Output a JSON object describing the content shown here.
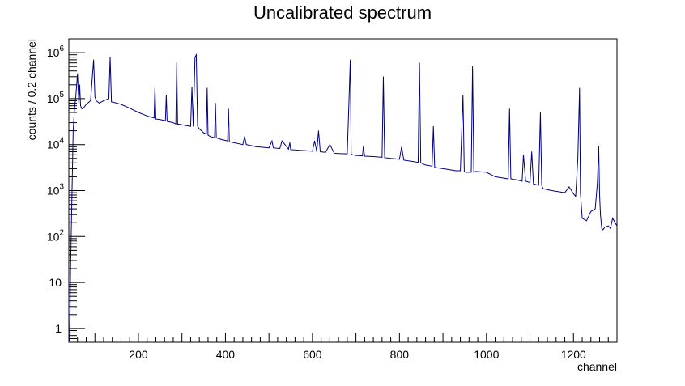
{
  "chart_data": {
    "type": "line",
    "title": "Uncalibrated spectrum",
    "xlabel": "channel",
    "ylabel": "counts / 0.2 channel",
    "xlim": [
      40,
      1300
    ],
    "ylim": [
      0.5,
      2000000
    ],
    "yscale": "log",
    "grid": false,
    "legend": "none",
    "line_color": "#000080",
    "x_ticks": [
      {
        "value": 200,
        "label": "200"
      },
      {
        "value": 400,
        "label": "400"
      },
      {
        "value": 600,
        "label": "600"
      },
      {
        "value": 800,
        "label": "800"
      },
      {
        "value": 1000,
        "label": "1000"
      },
      {
        "value": 1200,
        "label": "1200"
      }
    ],
    "y_ticks": [
      {
        "value": 1,
        "base": "1",
        "exp": ""
      },
      {
        "value": 10,
        "base": "10",
        "exp": ""
      },
      {
        "value": 100,
        "base": "10",
        "exp": "2"
      },
      {
        "value": 1000,
        "base": "10",
        "exp": "3"
      },
      {
        "value": 10000,
        "base": "10",
        "exp": "4"
      },
      {
        "value": 100000,
        "base": "10",
        "exp": "5"
      },
      {
        "value": 1000000,
        "base": "10",
        "exp": "6"
      }
    ],
    "series": [
      {
        "x": [
          40,
          42,
          44,
          46,
          48,
          50,
          53,
          56,
          60,
          63,
          65,
          67,
          70,
          75,
          80,
          90,
          97,
          100,
          103,
          110,
          120,
          132,
          135,
          138,
          150,
          160,
          180,
          200,
          220,
          236,
          238,
          240,
          250,
          262,
          264,
          266,
          280,
          286,
          288,
          290,
          300,
          320,
          323,
          326,
          330,
          333,
          336,
          340,
          345,
          350,
          356,
          358,
          360,
          365,
          375,
          377,
          379,
          390,
          405,
          407,
          409,
          420,
          440,
          444,
          448,
          460,
          470,
          500,
          507,
          510,
          525,
          530,
          545,
          548,
          550,
          570,
          600,
          605,
          610,
          614,
          618,
          630,
          640,
          650,
          660,
          680,
          687,
          689,
          692,
          700,
          715,
          717,
          720,
          740,
          760,
          763,
          766,
          780,
          800,
          805,
          810,
          830,
          843,
          846,
          849,
          860,
          875,
          878,
          881,
          900,
          920,
          930,
          940,
          946,
          949,
          952,
          960,
          965,
          968,
          971,
          975,
          1000,
          1020,
          1050,
          1053,
          1056,
          1070,
          1082,
          1085,
          1090,
          1100,
          1104,
          1108,
          1120,
          1124,
          1127,
          1130,
          1150,
          1180,
          1190,
          1200,
          1205,
          1210,
          1214,
          1216,
          1220,
          1230,
          1240,
          1250,
          1255,
          1258,
          1260,
          1262,
          1265,
          1268,
          1272,
          1280,
          1285,
          1290,
          1300
        ],
        "y": [
          0.5,
          0.6,
          20,
          200,
          2000,
          20000,
          60000,
          110000,
          350000,
          80000,
          200000,
          70000,
          60000,
          65000,
          75000,
          90000,
          700000,
          110000,
          90000,
          80000,
          90000,
          100000,
          800000,
          85000,
          80000,
          75000,
          62000,
          50000,
          42000,
          38000,
          180000,
          36000,
          35000,
          33000,
          120000,
          32000,
          30000,
          28000,
          600000,
          28000,
          27000,
          25000,
          180000,
          25000,
          800000,
          900000,
          25000,
          22000,
          20000,
          18000,
          17000,
          170000,
          16000,
          15000,
          14000,
          80000,
          14000,
          13000,
          12000,
          60000,
          11500,
          11000,
          10000,
          15000,
          10000,
          9500,
          9000,
          8500,
          12000,
          8500,
          8200,
          12000,
          8000,
          11000,
          7800,
          7500,
          7200,
          12000,
          7000,
          20000,
          7000,
          6800,
          10000,
          6500,
          6400,
          6300,
          700000,
          6200,
          6000,
          5800,
          5700,
          9000,
          5600,
          5500,
          5300,
          300000,
          5200,
          5000,
          4800,
          9000,
          4600,
          4300,
          4100,
          600000,
          4000,
          3600,
          3400,
          25000,
          3200,
          3000,
          2800,
          2700,
          2700,
          120000,
          2600,
          2500,
          2500,
          2500,
          500000,
          2500,
          2600,
          2500,
          2000,
          1800,
          60000,
          1800,
          1700,
          1600,
          6000,
          1600,
          1500,
          7000,
          1400,
          1300,
          50000,
          1300,
          1100,
          1000,
          900,
          1200,
          850,
          750,
          5000,
          170000,
          900,
          250,
          220,
          350,
          400,
          1500,
          9000,
          800,
          300,
          150,
          140,
          160,
          170,
          150,
          250,
          170
        ]
      }
    ]
  }
}
